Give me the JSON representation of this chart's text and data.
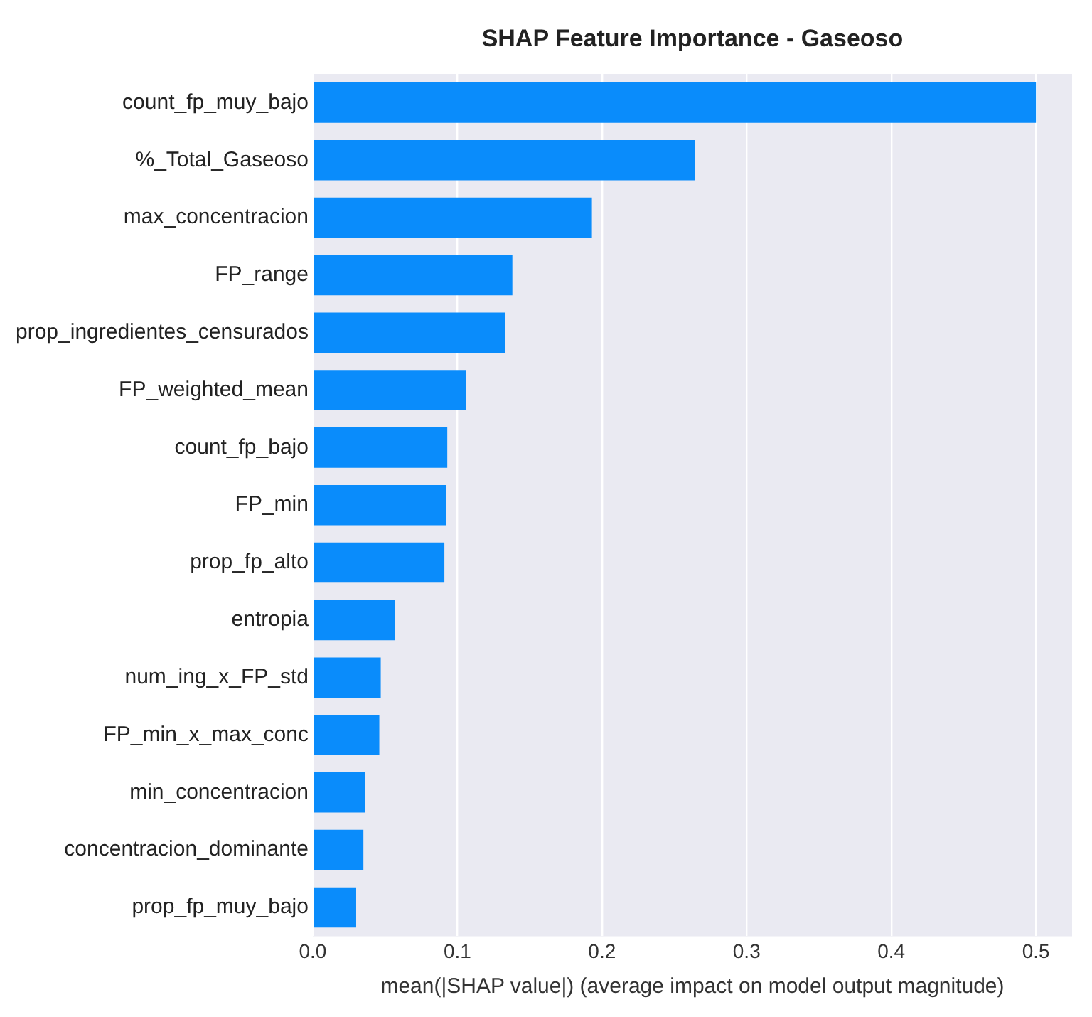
{
  "chart_data": {
    "type": "bar",
    "orientation": "horizontal",
    "title": "SHAP Feature Importance - Gaseoso",
    "xlabel": "mean(|SHAP value|) (average impact on model output magnitude)",
    "categories": [
      "count_fp_muy_bajo",
      "%_Total_Gaseoso",
      "max_concentracion",
      "FP_range",
      "prop_ingredientes_censurados",
      "FP_weighted_mean",
      "count_fp_bajo",
      "FP_min",
      "prop_fp_alto",
      "entropia",
      "num_ing_x_FP_std",
      "FP_min_x_max_conc",
      "min_concentracion",
      "concentracion_dominante",
      "prop_fp_muy_bajo"
    ],
    "values": [
      0.5,
      0.264,
      0.193,
      0.138,
      0.133,
      0.106,
      0.093,
      0.092,
      0.091,
      0.057,
      0.047,
      0.046,
      0.036,
      0.035,
      0.03
    ],
    "color": "#0a8cfb",
    "xlim": [
      0,
      0.525
    ],
    "xticks": [
      {
        "value": 0,
        "label": "0.0"
      },
      0.1,
      0.2,
      0.3,
      0.4,
      0.5
    ],
    "grid": "x",
    "legend": false
  }
}
